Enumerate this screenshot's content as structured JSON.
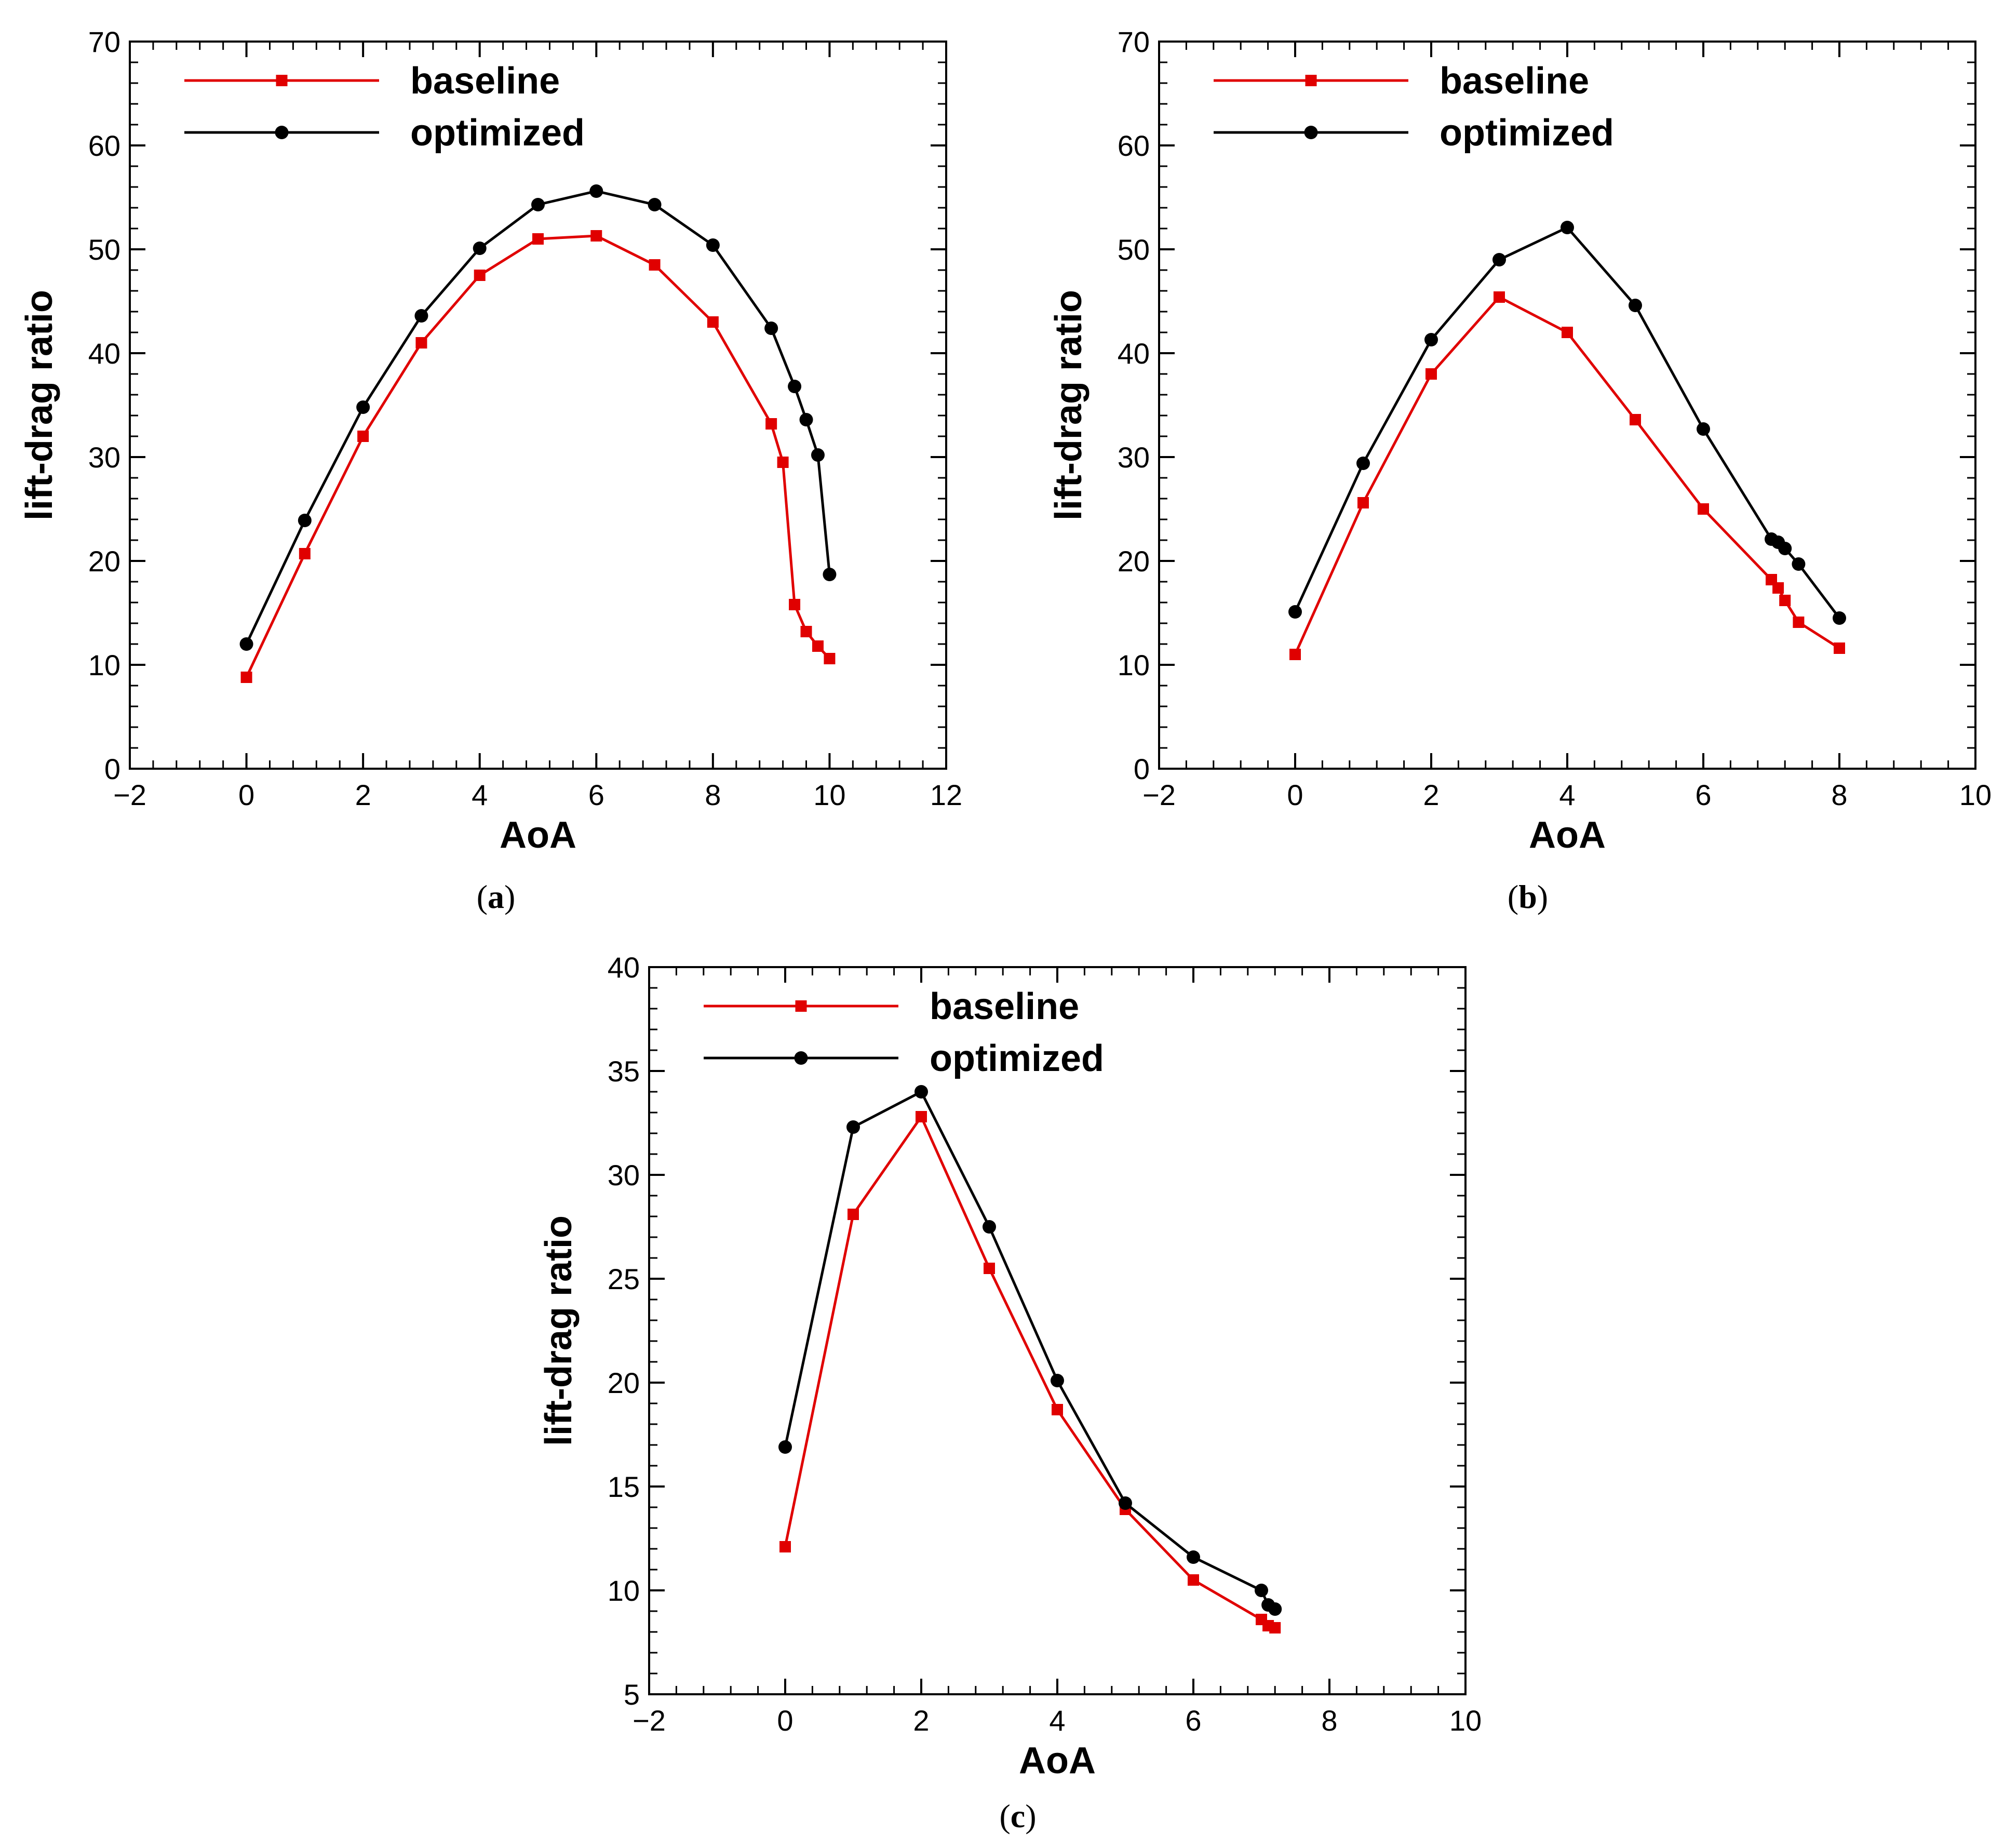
{
  "figure": {
    "colors": {
      "baseline": "#e00000",
      "optimized": "#000000",
      "axis": "#000000"
    }
  },
  "chart_data": [
    {
      "id": "a",
      "type": "line",
      "caption_letter": "a",
      "caption_open": "(",
      "caption_close": ")",
      "xlabel": "AoA",
      "ylabel": "lift-drag ratio",
      "xlim": [
        -2,
        12
      ],
      "ylim": [
        0,
        70
      ],
      "xticks": [
        -2,
        0,
        2,
        4,
        6,
        8,
        10,
        12
      ],
      "xtick_labels": [
        "−2",
        "0",
        "2",
        "4",
        "6",
        "8",
        "10",
        "12"
      ],
      "yticks": [
        0,
        10,
        20,
        30,
        40,
        50,
        60,
        70
      ],
      "ytick_labels": [
        "0",
        "10",
        "20",
        "30",
        "40",
        "50",
        "60",
        "70"
      ],
      "legend": {
        "position": "top-left",
        "entries": [
          "baseline",
          "optimized"
        ]
      },
      "series": [
        {
          "name": "baseline",
          "marker": "square",
          "color": "#e00000",
          "x": [
            0,
            1,
            2,
            3,
            4,
            5,
            6,
            7,
            8,
            9,
            9.2,
            9.4,
            9.6,
            9.8,
            10
          ],
          "y": [
            8.8,
            20.7,
            32.0,
            41.0,
            47.5,
            51.0,
            51.3,
            48.5,
            43.0,
            33.2,
            29.5,
            15.8,
            13.2,
            11.8,
            10.6
          ]
        },
        {
          "name": "optimized",
          "marker": "circle",
          "color": "#000000",
          "x": [
            0,
            1,
            2,
            3,
            4,
            5,
            6,
            7,
            8,
            9,
            9.4,
            9.6,
            9.8,
            10
          ],
          "y": [
            12.0,
            23.9,
            34.8,
            43.6,
            50.1,
            54.3,
            55.6,
            54.3,
            50.4,
            42.4,
            36.8,
            33.6,
            30.2,
            18.7
          ]
        }
      ]
    },
    {
      "id": "b",
      "type": "line",
      "caption_letter": "b",
      "caption_open": "(",
      "caption_close": ")",
      "xlabel": "AoA",
      "ylabel": "lift-drag ratio",
      "xlim": [
        -2,
        10
      ],
      "ylim": [
        0,
        70
      ],
      "xticks": [
        -2,
        0,
        2,
        4,
        6,
        8,
        10
      ],
      "xtick_labels": [
        "−2",
        "0",
        "2",
        "4",
        "6",
        "8",
        "10"
      ],
      "yticks": [
        0,
        10,
        20,
        30,
        40,
        50,
        60,
        70
      ],
      "ytick_labels": [
        "0",
        "10",
        "20",
        "30",
        "40",
        "50",
        "60",
        "70"
      ],
      "legend": {
        "position": "top-left",
        "entries": [
          "baseline",
          "optimized"
        ]
      },
      "series": [
        {
          "name": "baseline",
          "marker": "square",
          "color": "#e00000",
          "x": [
            0,
            1,
            2,
            3,
            4,
            5,
            6,
            7,
            7.1,
            7.2,
            7.4,
            8
          ],
          "y": [
            11.0,
            25.6,
            38.0,
            45.4,
            42.0,
            33.6,
            25.0,
            18.2,
            17.4,
            16.2,
            14.1,
            11.6
          ]
        },
        {
          "name": "optimized",
          "marker": "circle",
          "color": "#000000",
          "x": [
            0,
            1,
            2,
            3,
            4,
            5,
            6,
            7,
            7.1,
            7.2,
            7.4,
            8
          ],
          "y": [
            15.1,
            29.4,
            41.3,
            49.0,
            52.1,
            44.6,
            32.7,
            22.1,
            21.8,
            21.2,
            19.7,
            14.5
          ]
        }
      ]
    },
    {
      "id": "c",
      "type": "line",
      "caption_letter": "c",
      "caption_open": "(",
      "caption_close": ")",
      "xlabel": "AoA",
      "ylabel": "lift-drag ratio",
      "xlim": [
        -2,
        10
      ],
      "ylim": [
        5,
        40
      ],
      "xticks": [
        -2,
        0,
        2,
        4,
        6,
        8,
        10
      ],
      "xtick_labels": [
        "−2",
        "0",
        "2",
        "4",
        "6",
        "8",
        "10"
      ],
      "yticks": [
        5,
        10,
        15,
        20,
        25,
        30,
        35,
        40
      ],
      "ytick_labels": [
        "5",
        "10",
        "15",
        "20",
        "25",
        "30",
        "35",
        "40"
      ],
      "legend": {
        "position": "top-left",
        "entries": [
          "baseline",
          "optimized"
        ]
      },
      "series": [
        {
          "name": "baseline",
          "marker": "square",
          "color": "#e00000",
          "x": [
            0,
            1,
            2,
            3,
            4,
            5,
            6,
            7,
            7.1,
            7.2
          ],
          "y": [
            12.1,
            28.1,
            32.8,
            25.5,
            18.7,
            13.9,
            10.5,
            8.6,
            8.3,
            8.2
          ]
        },
        {
          "name": "optimized",
          "marker": "circle",
          "color": "#000000",
          "x": [
            0,
            1,
            2,
            3,
            4,
            5,
            6,
            7,
            7.1,
            7.2
          ],
          "y": [
            16.9,
            32.3,
            34.0,
            27.5,
            20.1,
            14.2,
            11.6,
            10.0,
            9.3,
            9.1
          ]
        }
      ]
    }
  ]
}
